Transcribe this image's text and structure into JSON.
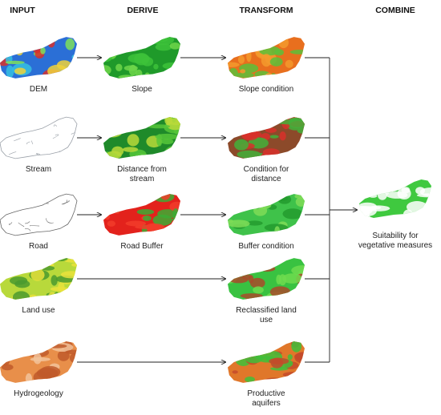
{
  "headers": {
    "input": "INPUT",
    "derive": "DERIVE",
    "transform": "TRANSFORM",
    "combine": "COMBINE"
  },
  "rows": [
    {
      "input": {
        "label": [
          "DEM"
        ],
        "colors": [
          "#2b6fd6",
          "#36c1e0",
          "#7fe05a",
          "#f0d23a",
          "#d9302a"
        ]
      },
      "derive": {
        "label": [
          "Slope"
        ],
        "colors": [
          "#1f9a2a",
          "#3dc23a",
          "#6ed64a"
        ]
      },
      "transform": {
        "label": [
          "Slope condition"
        ],
        "colors": [
          "#e86f1e",
          "#f39a2d",
          "#5cbf3a"
        ]
      }
    },
    {
      "input": {
        "label": [
          "Stream"
        ],
        "colors": [
          "#9aa0a8",
          "#ffffff"
        ]
      },
      "derive": {
        "label": [
          "Distance from",
          "stream"
        ],
        "colors": [
          "#1f8a2a",
          "#56c63a",
          "#b9d93a"
        ]
      },
      "transform": {
        "label": [
          "Condition for",
          "distance"
        ],
        "colors": [
          "#8c4a2a",
          "#42b039",
          "#d8302a"
        ]
      }
    },
    {
      "input": {
        "label": [
          "Road"
        ],
        "colors": [
          "#666666",
          "#ffffff"
        ]
      },
      "derive": {
        "label": [
          "Road Buffer"
        ],
        "colors": [
          "#e3221c",
          "#f23c2a",
          "#3cab34"
        ]
      },
      "transform": {
        "label": [
          "Buffer condition"
        ],
        "colors": [
          "#3fc24a",
          "#7fdc57",
          "#239b2e"
        ]
      }
    },
    {
      "input": {
        "label": [
          "Land use"
        ],
        "colors": [
          "#b8d93b",
          "#e9e23c",
          "#4a9a2f"
        ]
      },
      "derive": null,
      "transform": {
        "label": [
          "Reclassified land",
          "use"
        ],
        "colors": [
          "#39c241",
          "#6fdc4f",
          "#a94a2a"
        ]
      }
    },
    {
      "input": {
        "label": [
          "Hydrogeology"
        ],
        "colors": [
          "#e88f4a",
          "#f2c39a",
          "#c05a2a"
        ]
      },
      "derive": null,
      "transform": {
        "label": [
          "Productive",
          "aquifers"
        ],
        "colors": [
          "#e0772a",
          "#3fbf3a",
          "#c44a2a"
        ]
      }
    }
  ],
  "combine": {
    "label": [
      "Suitability for",
      "vegetative measures"
    ],
    "colors": [
      "#3fc93f",
      "#ffffff"
    ]
  }
}
